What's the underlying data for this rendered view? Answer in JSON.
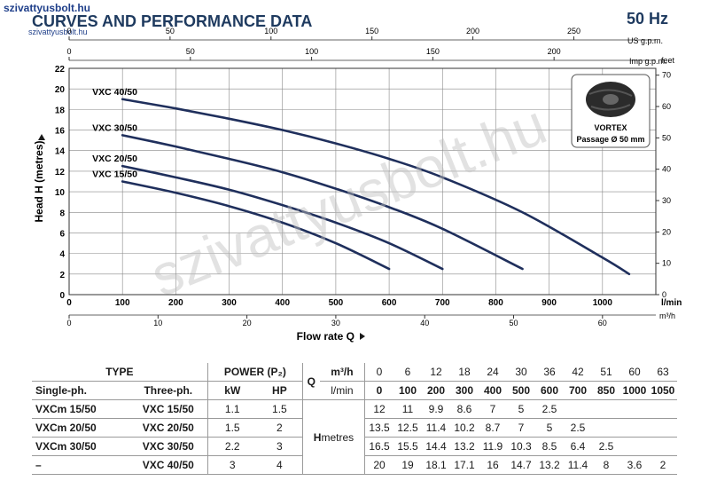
{
  "header": {
    "brand": "szivattyusbolt.hu",
    "brand_sub": "szivattyusbolt.hu",
    "title": "CURVES AND PERFORMANCE DATA",
    "frequency": "50 Hz"
  },
  "watermark": "szivattyusbolt.hu",
  "colors": {
    "curve": "#1f2f5c",
    "grid": "#888888",
    "text": "#1a1a1a",
    "title": "#1e3a5f"
  },
  "chart_data": {
    "type": "line",
    "xlabel": "Flow rate Q",
    "ylabel": "Head H (metres)",
    "x_unit_main": "l/min",
    "x_unit_m3h": "m³/h",
    "y_unit_right": "feet",
    "top_unit_usgpm": "US g.p.m.",
    "top_unit_impgpm": "Imp g.p.m.",
    "xlim": [
      0,
      1100
    ],
    "ylim": [
      0,
      22
    ],
    "x_ticks": [
      "0",
      "100",
      "200",
      "300",
      "400",
      "500",
      "600",
      "700",
      "800",
      "900",
      "1000"
    ],
    "y_ticks": [
      "0",
      "2",
      "4",
      "6",
      "8",
      "10",
      "12",
      "14",
      "16",
      "18",
      "20",
      "22"
    ],
    "feet_ticks": [
      "0",
      "10",
      "20",
      "30",
      "40",
      "50",
      "60",
      "70"
    ],
    "m3h_ticks": [
      "0",
      "10",
      "20",
      "30",
      "40",
      "50",
      "60"
    ],
    "usgpm_ticks": [
      "0",
      "50",
      "100",
      "150",
      "200",
      "250"
    ],
    "impgpm_ticks": [
      "0",
      "50",
      "100",
      "150",
      "200"
    ],
    "grid": true,
    "series": [
      {
        "name": "VXC 40/50",
        "x": [
          100,
          200,
          300,
          400,
          500,
          600,
          700,
          850,
          1000,
          1050
        ],
        "y": [
          19,
          18.1,
          17.1,
          16,
          14.7,
          13.2,
          11.4,
          8,
          3.6,
          2
        ]
      },
      {
        "name": "VXC 30/50",
        "x": [
          100,
          200,
          300,
          400,
          500,
          600,
          700,
          850
        ],
        "y": [
          15.5,
          14.4,
          13.2,
          11.9,
          10.3,
          8.5,
          6.4,
          2.5
        ]
      },
      {
        "name": "VXC 20/50",
        "x": [
          100,
          200,
          300,
          400,
          500,
          600,
          700
        ],
        "y": [
          12.5,
          11.4,
          10.2,
          8.7,
          7,
          5,
          2.5
        ]
      },
      {
        "name": "VXC 15/50",
        "x": [
          100,
          200,
          300,
          400,
          500,
          600
        ],
        "y": [
          11,
          9.9,
          8.6,
          7,
          5,
          2.5
        ]
      }
    ],
    "inset": {
      "label": "VORTEX",
      "caption": "Passage Ø 50 mm"
    }
  },
  "table": {
    "type_header": "TYPE",
    "power_header": "POWER (P₂)",
    "q_letter": "Q",
    "unit_m3h": "m³/h",
    "unit_lmin": "l/min",
    "col_single": "Single-ph.",
    "col_three": "Three-ph.",
    "col_kw": "kW",
    "col_hp": "HP",
    "h_label": "H",
    "h_unit": "metres",
    "m3h_values": [
      "0",
      "6",
      "12",
      "18",
      "24",
      "30",
      "36",
      "42",
      "51",
      "60",
      "63"
    ],
    "lmin_values": [
      "0",
      "100",
      "200",
      "300",
      "400",
      "500",
      "600",
      "700",
      "850",
      "1000",
      "1050"
    ],
    "rows": [
      {
        "single": "VXCm 15/50",
        "three": "VXC 15/50",
        "kw": "1.1",
        "hp": "1.5",
        "h": [
          "12",
          "11",
          "9.9",
          "8.6",
          "7",
          "5",
          "2.5",
          "",
          "",
          "",
          ""
        ]
      },
      {
        "single": "VXCm 20/50",
        "three": "VXC 20/50",
        "kw": "1.5",
        "hp": "2",
        "h": [
          "13.5",
          "12.5",
          "11.4",
          "10.2",
          "8.7",
          "7",
          "5",
          "2.5",
          "",
          "",
          ""
        ]
      },
      {
        "single": "VXCm 30/50",
        "three": "VXC 30/50",
        "kw": "2.2",
        "hp": "3",
        "h": [
          "16.5",
          "15.5",
          "14.4",
          "13.2",
          "11.9",
          "10.3",
          "8.5",
          "6.4",
          "2.5",
          "",
          ""
        ]
      },
      {
        "single": "–",
        "three": "VXC 40/50",
        "kw": "3",
        "hp": "4",
        "h": [
          "20",
          "19",
          "18.1",
          "17.1",
          "16",
          "14.7",
          "13.2",
          "11.4",
          "8",
          "3.6",
          "2"
        ]
      }
    ]
  }
}
